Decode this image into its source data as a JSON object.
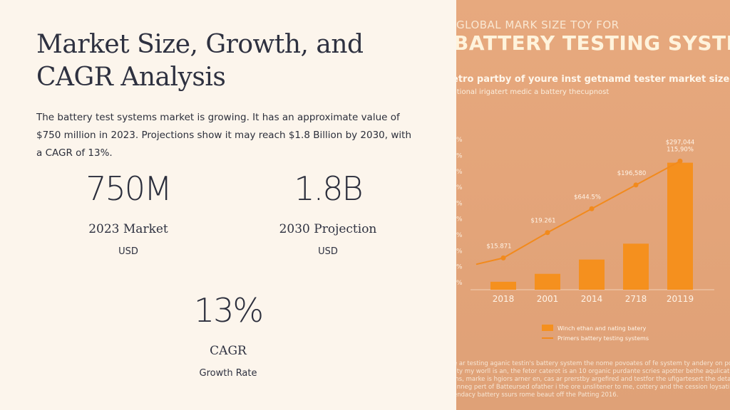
{
  "slide": {
    "title": "Market Size, Growth, and CAGR Analysis",
    "description": "The battery test systems market is growing. It has an approximate value of $750 million in 2023. Projections show it may reach $1.8 Billion by 2030, with a CAGR of 13%."
  },
  "stats": [
    {
      "value": "750M",
      "label": "2023 Market",
      "sub": "USD"
    },
    {
      "value": "1.8B",
      "label": "2030 Projection",
      "sub": "USD"
    },
    {
      "value": "13%",
      "label": "CAGR",
      "sub": "Growth Rate"
    }
  ],
  "image": {
    "kicker": "GLOBAL MARK SIZE  TOY FOR",
    "title": "BATTERY TESTING SYSTEMS",
    "subtitle": "etro partby of youre inst getnamd tester market size.",
    "subline": "'tional irigatert medic a battery thecupnost",
    "footer": [
      "e ar testing aganic testin's battery system the nome povoates of fe system ty andery on portfot th",
      "lity my worll is an, the fetor caterot is an 10 organic purdante scries apotter bethe aqulication c",
      "ins, marke is hgiors arner en, cas ar prerstby argefired and testfor the ufigartesert the detaling th",
      "linneg pert of Batteursed ofather i the ore unslitener to me, cottery and the cession loysatiny the",
      "endacy battery ssurs rome beaut off the Patting 2016."
    ],
    "colors": {
      "bar": "#f5901e",
      "line": "#f28a1c",
      "background": "#e5a67b"
    }
  },
  "chart_data": {
    "type": "bar",
    "categories": [
      "2018",
      "2001",
      "2014",
      "2718",
      "20119"
    ],
    "values": [
      5,
      10,
      19,
      29,
      80
    ],
    "line_values": [
      20,
      36,
      51,
      66,
      81
    ],
    "line_labels": [
      "$15.871",
      "$19.261",
      "$644.5%",
      "$196,580",
      "$297,044\n115,90%"
    ],
    "y_tick_labels": [
      "%",
      "%",
      "%",
      "%",
      "%",
      "%",
      "%",
      "%",
      "%",
      "%"
    ],
    "ylim": [
      0,
      100
    ],
    "legend": [
      {
        "type": "bar",
        "label": "Winch ethan and nating batery"
      },
      {
        "type": "line",
        "label": "Primers battery testing systems"
      }
    ],
    "legend_position": "bottom-center",
    "grid": false
  }
}
